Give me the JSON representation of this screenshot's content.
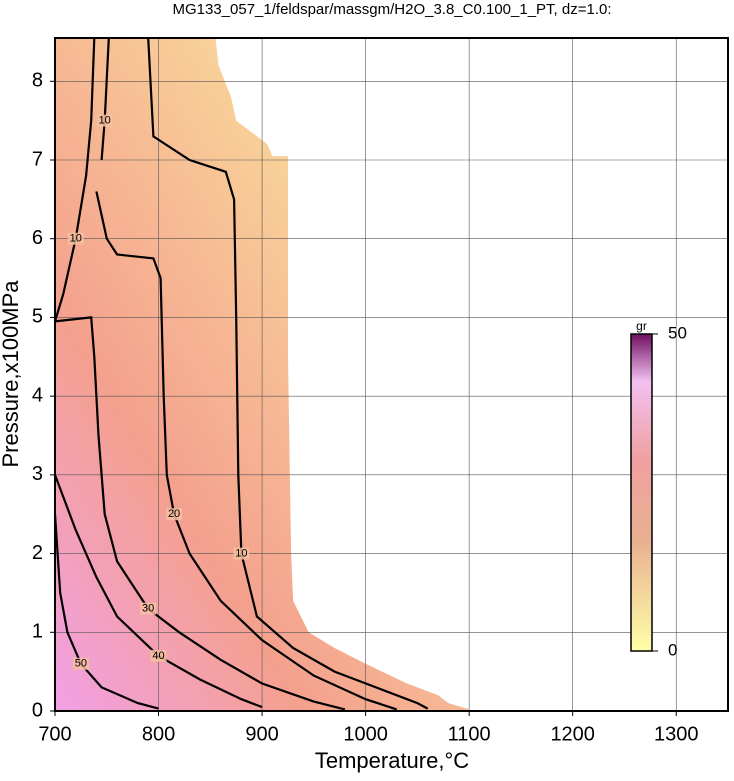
{
  "chart_data": {
    "type": "contour",
    "title": "MG133_057_1/feldspar/massgm/H2O_3.8_C0.100_1_PT, dz=1.0:",
    "x_label": "Temperature,°C",
    "y_label": "Pressure,x100MPa",
    "xlim": [
      700,
      1350
    ],
    "ylim": [
      0,
      8.55
    ],
    "xticks": [
      700,
      800,
      900,
      1000,
      1100,
      1200,
      1300
    ],
    "yticks": [
      0,
      1,
      2,
      3,
      4,
      5,
      6,
      7,
      8
    ],
    "grid": true,
    "region": {
      "x": [
        700,
        855,
        858,
        870,
        875,
        905,
        910,
        925,
        925,
        928,
        930,
        945,
        970,
        1000,
        1040,
        1070,
        1080,
        1100,
        1100,
        700
      ],
      "y": [
        8.55,
        8.55,
        8.2,
        7.8,
        7.5,
        7.2,
        7.05,
        7.05,
        4.5,
        2.0,
        1.4,
        1.0,
        0.8,
        0.6,
        0.35,
        0.2,
        0.1,
        0.02,
        0,
        0
      ]
    },
    "series": [
      {
        "level": 10,
        "x": [
          790,
          795,
          830,
          865,
          873,
          875,
          877,
          880,
          895,
          930,
          970,
          1010,
          1050,
          1060
        ],
        "y": [
          8.55,
          7.3,
          7.0,
          6.85,
          6.5,
          5.0,
          3.0,
          2.0,
          1.2,
          0.8,
          0.5,
          0.3,
          0.1,
          0.03
        ]
      },
      {
        "level": 10,
        "x": [
          738,
          735,
          730,
          720,
          708,
          700
        ],
        "y": [
          8.55,
          7.5,
          6.8,
          6.0,
          5.3,
          4.95
        ]
      },
      {
        "level": 10,
        "x": [
          752,
          748,
          745
        ],
        "y": [
          8.55,
          7.5,
          7.0
        ]
      },
      {
        "level": 20,
        "x": [
          740,
          750,
          760,
          795,
          802,
          805,
          808,
          815,
          830,
          860,
          900,
          950,
          1000,
          1030
        ],
        "y": [
          6.6,
          6.0,
          5.8,
          5.75,
          5.5,
          4.0,
          3.0,
          2.5,
          2.0,
          1.4,
          0.9,
          0.45,
          0.15,
          0.02
        ]
      },
      {
        "level": 30,
        "x": [
          700,
          735,
          738,
          742,
          748,
          760,
          790,
          820,
          860,
          900,
          950,
          980
        ],
        "y": [
          4.95,
          5.0,
          4.5,
          3.5,
          2.5,
          1.9,
          1.3,
          1.0,
          0.65,
          0.35,
          0.12,
          0.02
        ]
      },
      {
        "level": 40,
        "x": [
          700,
          720,
          740,
          760,
          800,
          840,
          880,
          900
        ],
        "y": [
          3.0,
          2.3,
          1.7,
          1.2,
          0.7,
          0.4,
          0.15,
          0.05
        ]
      },
      {
        "level": 50,
        "x": [
          700,
          705,
          712,
          725,
          745,
          780,
          800
        ],
        "y": [
          2.5,
          1.5,
          1.0,
          0.6,
          0.3,
          0.1,
          0.03
        ]
      }
    ],
    "colorbar": {
      "label": "gr",
      "lim": [
        0,
        50
      ],
      "ticks": [
        0,
        50
      ]
    }
  }
}
